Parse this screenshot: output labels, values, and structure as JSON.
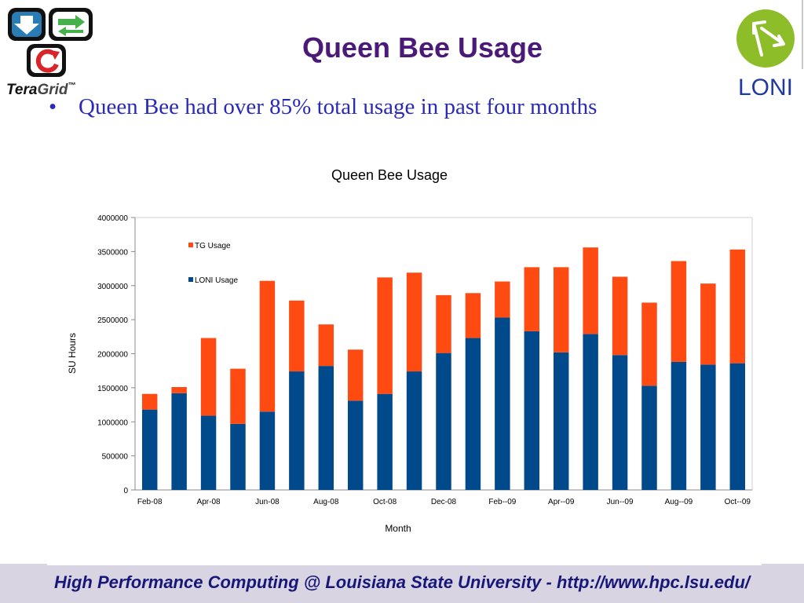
{
  "slide": {
    "title": "Queen Bee Usage",
    "bullet": "Queen Bee had over 85% total usage in past four months",
    "bullet_marker": "•",
    "footer": "High Performance Computing @ Louisiana State University - http://www.hpc.lsu.edu/"
  },
  "logos": {
    "left_wordmark_a": "Tera",
    "left_wordmark_b": "Grid",
    "left_tm": "™",
    "right_wordmark": "LONI"
  },
  "colors": {
    "title": "#4b1a78",
    "bullet": "#2a2ab8",
    "tg_series": "#ff4a12",
    "loni_series": "#004a8c",
    "loni_logo": "#8dbe2a",
    "footer_bar": "#d8d4e2",
    "footer_text": "#17177a"
  },
  "chart_data": {
    "type": "bar",
    "stacked": true,
    "title": "Queen Bee Usage",
    "xlabel": "Month",
    "ylabel": "SU Hours",
    "ylim": [
      0,
      4000000
    ],
    "yticks": [
      0,
      500000,
      1000000,
      1500000,
      2000000,
      2500000,
      3000000,
      3500000,
      4000000
    ],
    "categories": [
      "Feb-08",
      "Mar-08",
      "Apr-08",
      "May-08",
      "Jun-08",
      "Jul-08",
      "Aug-08",
      "Sep-08",
      "Oct-08",
      "Nov-08",
      "Dec-08",
      "Jan-09",
      "Feb--09",
      "Mar--09",
      "Apr--09",
      "May--09",
      "Jun--09",
      "Jul--09",
      "Aug--09",
      "Sep--09",
      "Oct--09"
    ],
    "xticklabels_shown": [
      "Feb-08",
      "Apr-08",
      "Jun-08",
      "Aug-08",
      "Oct-08",
      "Dec-08",
      "Feb--09",
      "Apr--09",
      "Jun--09",
      "Aug--09",
      "Oct--09"
    ],
    "legend_position": "top-left (inside plot)",
    "grid": false,
    "series": [
      {
        "name": "LONI Usage",
        "color": "#004a8c",
        "values": [
          1180000,
          1420000,
          1090000,
          970000,
          1150000,
          1740000,
          1820000,
          1310000,
          1410000,
          1740000,
          2010000,
          2230000,
          2530000,
          2330000,
          2020000,
          2290000,
          1980000,
          1530000,
          1880000,
          1840000,
          1860000
        ]
      },
      {
        "name": "TG Usage",
        "color": "#ff4a12",
        "values": [
          230000,
          90000,
          1140000,
          810000,
          1920000,
          1040000,
          610000,
          750000,
          1710000,
          1450000,
          850000,
          660000,
          530000,
          940000,
          1250000,
          1270000,
          1150000,
          1220000,
          1480000,
          1190000,
          1670000
        ]
      }
    ]
  }
}
